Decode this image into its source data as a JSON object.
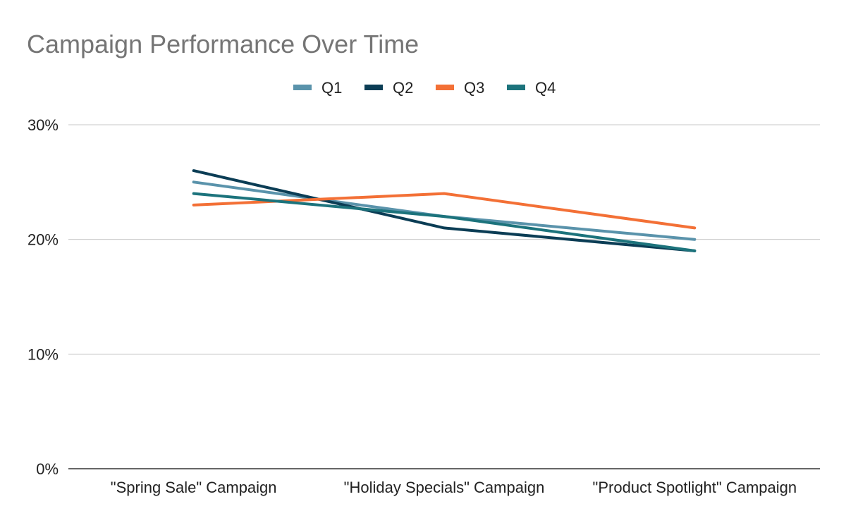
{
  "chart_data": {
    "type": "line",
    "title": "Campaign Performance Over Time",
    "xlabel": "",
    "ylabel": "",
    "categories": [
      "\"Spring Sale\" Campaign",
      "\"Holiday Specials\" Campaign",
      "\"Product Spotlight\" Campaign"
    ],
    "y_ticks": [
      0,
      10,
      20,
      30
    ],
    "y_tick_labels": [
      "0%",
      "10%",
      "20%",
      "30%"
    ],
    "ylim": [
      0,
      30
    ],
    "grid": true,
    "legend_position": "top",
    "series": [
      {
        "name": "Q1",
        "color": "#5a93ab",
        "values": [
          25,
          22,
          20
        ]
      },
      {
        "name": "Q2",
        "color": "#0b3d55",
        "values": [
          26,
          21,
          19
        ]
      },
      {
        "name": "Q3",
        "color": "#f37036",
        "values": [
          23,
          24,
          21
        ]
      },
      {
        "name": "Q4",
        "color": "#1c737c",
        "values": [
          24,
          22,
          19
        ]
      }
    ]
  }
}
